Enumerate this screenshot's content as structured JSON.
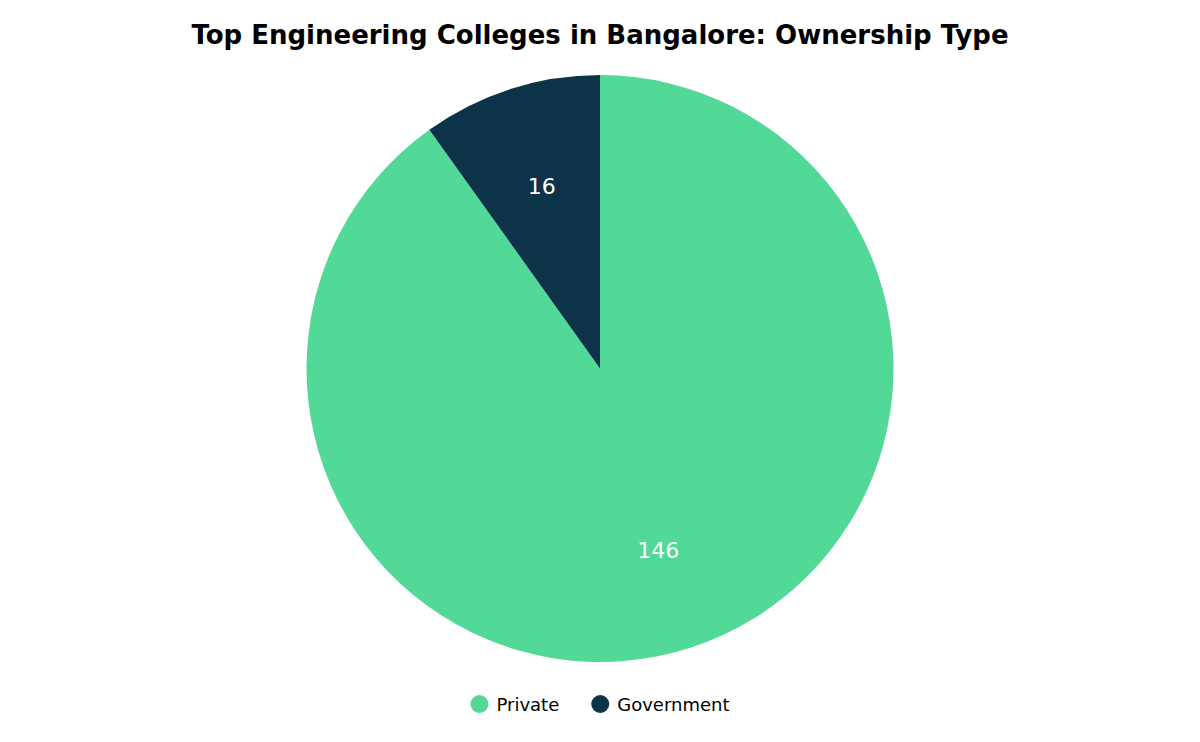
{
  "chart_data": {
    "type": "pie",
    "title": "Top Engineering Colleges in Bangalore: Ownership Type",
    "categories": [
      "Private",
      "Government"
    ],
    "values": [
      146,
      16
    ],
    "colors": [
      "#52d997",
      "#0d3349"
    ],
    "data_labels": true,
    "legend": "bottom"
  }
}
